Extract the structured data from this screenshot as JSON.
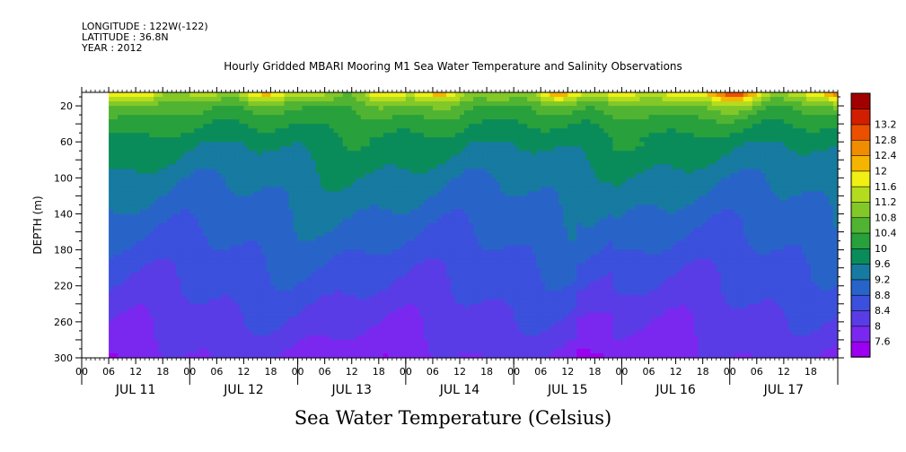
{
  "meta": {
    "longitude": "LONGITUDE : 122W(-122)",
    "latitude": "LATITUDE : 36.8N",
    "year": "YEAR : 2012"
  },
  "chart_data": {
    "type": "heatmap",
    "title": "Hourly Gridded MBARI Mooring M1 Sea Water Temperature and Salinity Observations",
    "colorbar_title": "Sea Water Temperature (Celsius)",
    "ylabel": "DEPTH (m)",
    "ylim": [
      300,
      5
    ],
    "yticks": [
      20,
      60,
      100,
      140,
      180,
      220,
      260,
      300
    ],
    "x_start_hour": 0,
    "x_end_hour": 168,
    "data_start_hour": 6,
    "hour_ticks": [
      {
        "hour": 0,
        "label": "00"
      },
      {
        "hour": 6,
        "label": "06"
      },
      {
        "hour": 12,
        "label": "12"
      },
      {
        "hour": 18,
        "label": "18"
      },
      {
        "hour": 24,
        "label": "00"
      },
      {
        "hour": 30,
        "label": "06"
      },
      {
        "hour": 36,
        "label": "12"
      },
      {
        "hour": 42,
        "label": "18"
      },
      {
        "hour": 48,
        "label": "00"
      },
      {
        "hour": 54,
        "label": "06"
      },
      {
        "hour": 60,
        "label": "12"
      },
      {
        "hour": 66,
        "label": "18"
      },
      {
        "hour": 72,
        "label": "00"
      },
      {
        "hour": 78,
        "label": "06"
      },
      {
        "hour": 84,
        "label": "12"
      },
      {
        "hour": 90,
        "label": "18"
      },
      {
        "hour": 96,
        "label": "00"
      },
      {
        "hour": 102,
        "label": "06"
      },
      {
        "hour": 108,
        "label": "12"
      },
      {
        "hour": 114,
        "label": "18"
      },
      {
        "hour": 120,
        "label": "00"
      },
      {
        "hour": 126,
        "label": "06"
      },
      {
        "hour": 132,
        "label": "12"
      },
      {
        "hour": 138,
        "label": "18"
      },
      {
        "hour": 144,
        "label": "00"
      },
      {
        "hour": 150,
        "label": "06"
      },
      {
        "hour": 156,
        "label": "12"
      },
      {
        "hour": 162,
        "label": "18"
      }
    ],
    "day_labels": [
      {
        "hour": 12,
        "label": "JUL 11"
      },
      {
        "hour": 36,
        "label": "JUL 12"
      },
      {
        "hour": 60,
        "label": "JUL 13"
      },
      {
        "hour": 84,
        "label": "JUL 14"
      },
      {
        "hour": 108,
        "label": "JUL 15"
      },
      {
        "hour": 132,
        "label": "JUL 16"
      },
      {
        "hour": 156,
        "label": "JUL 17"
      }
    ],
    "colorbar_levels": [
      7.6,
      8,
      8.4,
      8.8,
      9.2,
      9.6,
      10,
      10.4,
      10.8,
      11.2,
      11.6,
      12,
      12.4,
      12.8,
      13.2
    ],
    "colorbar_colors": [
      "#9b00f0",
      "#7a28f0",
      "#5a3ce6",
      "#3b50dc",
      "#2864c8",
      "#177aa0",
      "#0a8c5a",
      "#28a03c",
      "#50b432",
      "#82c828",
      "#b4dc1e",
      "#f0f014",
      "#f5b400",
      "#f08c00",
      "#eb5000",
      "#d21e00",
      "#a00000"
    ],
    "temperature_profile": {
      "depths": [
        5,
        20,
        40,
        60,
        80,
        100,
        140,
        180,
        220,
        260,
        300
      ],
      "values": [
        11.6,
        10.6,
        10.1,
        9.8,
        9.6,
        9.4,
        9.1,
        8.8,
        8.5,
        8.2,
        7.9
      ]
    }
  }
}
